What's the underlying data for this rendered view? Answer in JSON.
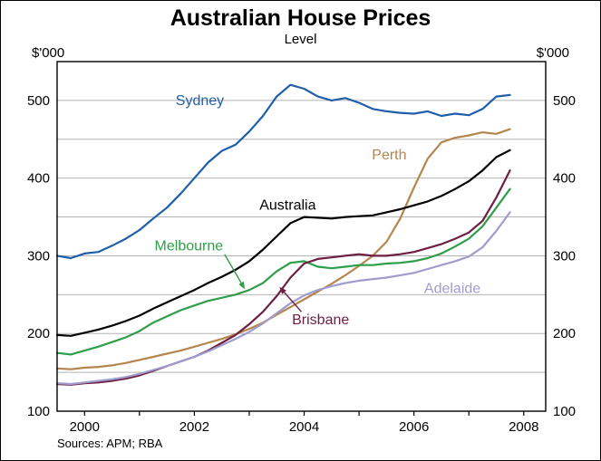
{
  "title": "Australian House Prices",
  "subtitle": "Level",
  "unit_left": "$'000",
  "unit_right": "$'000",
  "source": "Sources: APM; RBA",
  "chart_data": {
    "type": "line",
    "title": "Australian House Prices",
    "subtitle": "Level",
    "unit": "$'000",
    "grid": "horizontal",
    "legend_position": "inline-labels",
    "xlim": [
      1999.5,
      2008.4
    ],
    "ylim": [
      100,
      550
    ],
    "grid_values": [
      150,
      200,
      250,
      300,
      350,
      400,
      450,
      500
    ],
    "y_ticks": [
      {
        "value": 100,
        "label": "100"
      },
      {
        "value": 200,
        "label": "200"
      },
      {
        "value": 300,
        "label": "300"
      },
      {
        "value": 400,
        "label": "400"
      },
      {
        "value": 500,
        "label": "500"
      }
    ],
    "x_minor_ticks": [
      2000,
      2001,
      2002,
      2003,
      2004,
      2005,
      2006,
      2007,
      2008
    ],
    "x_ticks": [
      {
        "value": 2000,
        "label": "2000"
      },
      {
        "value": 2002,
        "label": "2002"
      },
      {
        "value": 2004,
        "label": "2004"
      },
      {
        "value": 2006,
        "label": "2006"
      },
      {
        "value": 2008,
        "label": "2008"
      }
    ],
    "x": [
      1999.5,
      1999.75,
      2000.0,
      2000.25,
      2000.5,
      2000.75,
      2001.0,
      2001.25,
      2001.5,
      2001.75,
      2002.0,
      2002.25,
      2002.5,
      2002.75,
      2003.0,
      2003.25,
      2003.5,
      2003.75,
      2004.0,
      2004.25,
      2004.5,
      2004.75,
      2005.0,
      2005.25,
      2005.5,
      2005.75,
      2006.0,
      2006.25,
      2006.5,
      2006.75,
      2007.0,
      2007.25,
      2007.5,
      2007.75
    ],
    "series": [
      {
        "name": "Sydney",
        "color": "#1f5ea9",
        "values": [
          300,
          297,
          303,
          305,
          313,
          322,
          333,
          348,
          362,
          380,
          400,
          420,
          435,
          443,
          460,
          480,
          505,
          520,
          515,
          505,
          500,
          503,
          497,
          489,
          486,
          484,
          483,
          486,
          480,
          483,
          481,
          489,
          505,
          507
        ],
        "label": {
          "x": 2002.1,
          "y": 500,
          "anchor": "middle"
        }
      },
      {
        "name": "Perth",
        "color": "#b5854e",
        "values": [
          155,
          154,
          156,
          157,
          159,
          162,
          166,
          170,
          174,
          178,
          183,
          188,
          193,
          199,
          206,
          214,
          224,
          234,
          244,
          254,
          264,
          275,
          287,
          300,
          318,
          348,
          388,
          425,
          446,
          452,
          455,
          459,
          457,
          463
        ],
        "label": {
          "x": 2005.55,
          "y": 430,
          "anchor": "middle"
        }
      },
      {
        "name": "Australia",
        "color": "#000000",
        "values": [
          198,
          197,
          201,
          205,
          210,
          216,
          223,
          232,
          240,
          248,
          256,
          265,
          273,
          282,
          293,
          308,
          325,
          342,
          350,
          349,
          348,
          350,
          351,
          352,
          356,
          360,
          365,
          370,
          377,
          386,
          396,
          410,
          427,
          436
        ],
        "label": {
          "x": 2003.7,
          "y": 365,
          "anchor": "middle"
        }
      },
      {
        "name": "Melbourne",
        "color": "#2f9e49",
        "values": [
          175,
          173,
          178,
          183,
          189,
          195,
          203,
          214,
          222,
          230,
          236,
          242,
          246,
          250,
          256,
          265,
          280,
          291,
          293,
          286,
          284,
          286,
          288,
          288,
          290,
          291,
          293,
          297,
          303,
          312,
          322,
          338,
          362,
          386
        ],
        "label": {
          "x": 2001.9,
          "y": 313,
          "anchor": "middle"
        },
        "arrow": {
          "from": [
            2002.55,
            302
          ],
          "to": [
            2002.92,
            257
          ]
        }
      },
      {
        "name": "Brisbane",
        "color": "#6d1f42",
        "values": [
          135,
          134,
          136,
          137,
          139,
          142,
          146,
          152,
          158,
          164,
          170,
          178,
          188,
          198,
          212,
          228,
          248,
          272,
          290,
          296,
          298,
          300,
          302,
          300,
          300,
          302,
          305,
          310,
          315,
          322,
          330,
          345,
          375,
          410
        ],
        "label": {
          "x": 2004.3,
          "y": 218,
          "anchor": "middle"
        },
        "arrow": {
          "from": [
            2003.95,
            228
          ],
          "to": [
            2003.55,
            260
          ]
        }
      },
      {
        "name": "Adelaide",
        "color": "#a09ccd",
        "values": [
          136,
          135,
          137,
          139,
          141,
          144,
          148,
          153,
          158,
          164,
          170,
          177,
          185,
          193,
          202,
          213,
          226,
          239,
          249,
          256,
          261,
          265,
          268,
          270,
          272,
          275,
          278,
          283,
          288,
          293,
          299,
          311,
          332,
          356
        ],
        "label": {
          "x": 2006.7,
          "y": 258,
          "anchor": "middle"
        }
      }
    ]
  }
}
